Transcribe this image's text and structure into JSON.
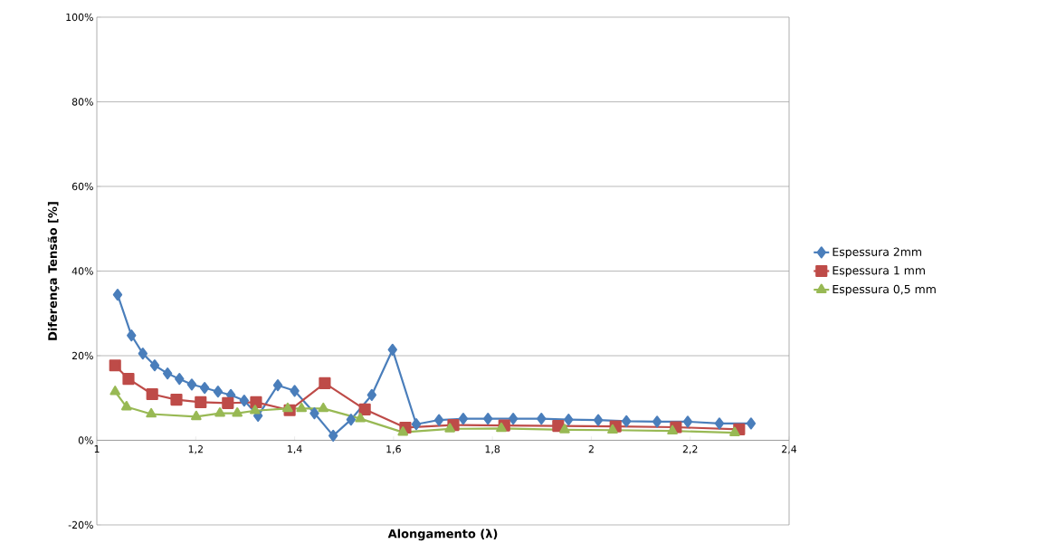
{
  "chart_data": {
    "type": "line",
    "xlabel": "Alongamento (λ)",
    "ylabel": "Diferença Tensão [%]",
    "series": [
      {
        "name": "Espessura 2mm",
        "color": "#4a7ebb",
        "marker": "diamond",
        "x": [
          1.042,
          1.07,
          1.093,
          1.117,
          1.143,
          1.167,
          1.192,
          1.218,
          1.245,
          1.271,
          1.298,
          1.326,
          1.366,
          1.4,
          1.44,
          1.478,
          1.514,
          1.556,
          1.598,
          1.646,
          1.692,
          1.741,
          1.791,
          1.842,
          1.899,
          1.954,
          2.014,
          2.071,
          2.133,
          2.195,
          2.259,
          2.323
        ],
        "values": [
          34.4,
          24.8,
          20.5,
          17.7,
          15.8,
          14.5,
          13.2,
          12.4,
          11.5,
          10.7,
          9.4,
          5.8,
          13,
          11.7,
          6.4,
          1.1,
          4.9,
          10.7,
          21.4,
          3.8,
          4.8,
          5.1,
          5.1,
          5.1,
          5.1,
          4.9,
          4.8,
          4.5,
          4.4,
          4.4,
          4.0,
          4.0
        ]
      },
      {
        "name": "Espessura 1 mm",
        "color": "#be4b48",
        "marker": "square",
        "x": [
          1.037,
          1.064,
          1.112,
          1.161,
          1.21,
          1.265,
          1.322,
          1.39,
          1.461,
          1.542,
          1.624,
          1.721,
          1.824,
          1.933,
          2.049,
          2.171,
          2.299
        ],
        "values": [
          17.7,
          14.5,
          10.9,
          9.6,
          9.0,
          8.8,
          9.0,
          7.1,
          13.5,
          7.3,
          3.0,
          3.6,
          3.5,
          3.4,
          3.3,
          3.1,
          2.6
        ]
      },
      {
        "name": "Espessura 0,5 mm",
        "color": "#98b954",
        "marker": "triangle",
        "x": [
          1.037,
          1.06,
          1.11,
          1.201,
          1.249,
          1.284,
          1.32,
          1.386,
          1.414,
          1.458,
          1.533,
          1.619,
          1.714,
          1.818,
          1.946,
          2.043,
          2.164,
          2.29
        ],
        "values": [
          11.5,
          7.9,
          6.2,
          5.6,
          6.4,
          6.4,
          7.0,
          7.5,
          7.5,
          7.5,
          5.1,
          1.9,
          2.7,
          2.8,
          2.5,
          2.4,
          2.2,
          1.8
        ]
      }
    ],
    "xlim": [
      1,
      2.4
    ],
    "xticks": [
      1,
      {
        "value": 1.2,
        "label": "1,2"
      },
      {
        "value": 1.4,
        "label": "1,4"
      },
      {
        "value": 1.6,
        "label": "1,6"
      },
      {
        "value": 1.8,
        "label": "1,8"
      },
      2,
      {
        "value": 2.2,
        "label": "2,2"
      },
      {
        "value": 2.4,
        "label": "2,4"
      }
    ],
    "ylim": [
      -20,
      100
    ],
    "yticks": [
      {
        "value": -20,
        "label": "-20%"
      },
      {
        "value": 0,
        "label": "0%"
      },
      {
        "value": 20,
        "label": "20%"
      },
      {
        "value": 40,
        "label": "40%"
      },
      {
        "value": 60,
        "label": "60%"
      },
      {
        "value": 80,
        "label": "80%"
      },
      {
        "value": 100,
        "label": "100%"
      }
    ],
    "grid": "y",
    "legend": "right",
    "line_style": "solid"
  }
}
